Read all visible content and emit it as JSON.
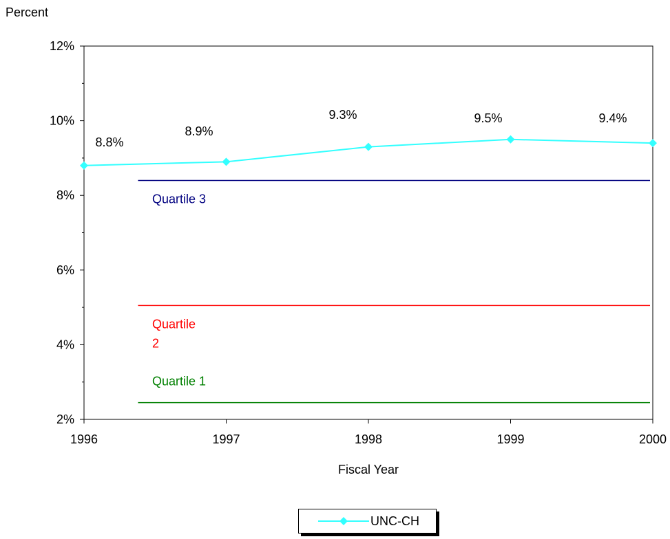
{
  "chart_data": {
    "type": "line",
    "ylabel": "Percent",
    "xlabel": "Fiscal Year",
    "x": [
      "1996",
      "1997",
      "1998",
      "1999",
      "2000"
    ],
    "ylim": [
      2,
      12
    ],
    "y_ticks": [
      "2%",
      "4%",
      "6%",
      "8%",
      "10%",
      "12%"
    ],
    "series": [
      {
        "name": "UNC-CH",
        "color": "#33FFFF",
        "values": [
          8.8,
          8.9,
          9.3,
          9.5,
          9.4
        ],
        "labels": [
          "8.8%",
          "8.9%",
          "9.3%",
          "9.5%",
          "9.4%"
        ]
      }
    ],
    "reference_lines": [
      {
        "label": "Quartile 3",
        "value": 8.4,
        "color": "#000080"
      },
      {
        "label_lines": [
          "Quartile",
          "2"
        ],
        "value": 5.05,
        "color": "#FF0000"
      },
      {
        "label": "Quartile 1",
        "value": 2.45,
        "color": "#008000"
      }
    ],
    "grid": false,
    "legend": "bottom-center"
  }
}
